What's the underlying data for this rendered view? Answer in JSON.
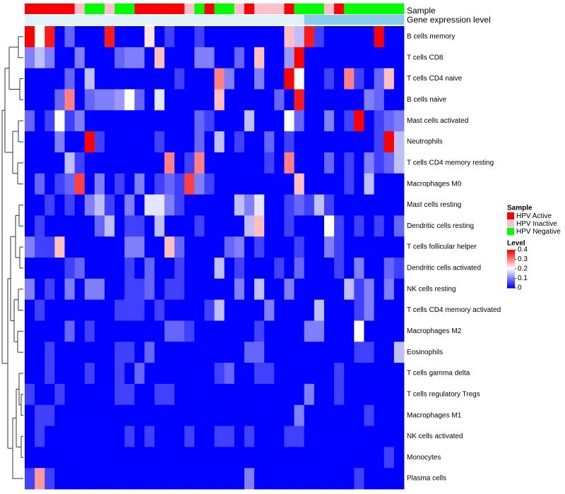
{
  "chart_data": {
    "type": "heatmap",
    "title": "",
    "annotation_tracks": [
      {
        "name": "Sample",
        "values": [
          "HPV Active",
          "HPV Active",
          "HPV Active",
          "HPV Active",
          "HPV Active",
          "HPV Inactive",
          "HPV Negative",
          "HPV Negative",
          "HPV Inactive",
          "HPV Negative",
          "HPV Negative",
          "HPV Active",
          "HPV Active",
          "HPV Active",
          "HPV Active",
          "HPV Active",
          "HPV Inactive",
          "HPV Negative",
          "HPV Active",
          "HPV Negative",
          "HPV Negative",
          "HPV Inactive",
          "HPV Active",
          "HPV Inactive",
          "HPV Inactive",
          "HPV Inactive",
          "HPV Active",
          "HPV Negative",
          "HPV Negative",
          "HPV Negative",
          "HPV Inactive",
          "HPV Active",
          "HPV Negative",
          "HPV Negative",
          "HPV Negative",
          "HPV Negative",
          "HPV Negative",
          "HPV Negative"
        ]
      },
      {
        "name": "Gene expression level",
        "values": [
          "low",
          "low",
          "low",
          "low",
          "low",
          "low",
          "low",
          "low",
          "low",
          "low",
          "low",
          "low",
          "low",
          "low",
          "low",
          "low",
          "low",
          "low",
          "low",
          "low",
          "low",
          "low",
          "low",
          "low",
          "low",
          "low",
          "low",
          "low",
          "high",
          "high",
          "high",
          "high",
          "high",
          "high",
          "high",
          "high",
          "high",
          "high"
        ]
      }
    ],
    "rows": [
      "B cells memory",
      "T cells CD8",
      "T cells CD4 naive",
      "B cells naive",
      "Mast cells activated",
      "Neutrophils",
      "T cells CD4 memory resting",
      "Macrophages M0",
      "Mast cells resting",
      "Dendritic cells resting",
      "T cells follicular helper",
      "Dendritic cells activated",
      "NK cells resting",
      "T cells CD4 memory activated",
      "Macrophages M2",
      "Eosinophils",
      "T cells gamma delta",
      "T cells regulatory  Tregs",
      "Macrophages M1",
      "NK cells activated",
      "Monocytes",
      "Plasma cells"
    ],
    "values": [
      [
        0.4,
        0.2,
        0.38,
        0.0,
        0.08,
        0.0,
        0.0,
        0.0,
        0.38,
        0.0,
        0.0,
        0.0,
        0.22,
        0.0,
        0.05,
        0.0,
        0.0,
        0.05,
        0.0,
        0.0,
        0.0,
        0.0,
        0.0,
        0.0,
        0.0,
        0.0,
        0.25,
        0.15,
        0.38,
        0.05,
        0.0,
        0.0,
        0.0,
        0.0,
        0.0,
        0.4,
        0.0,
        0.0
      ],
      [
        0.1,
        0.15,
        0.1,
        0.0,
        0.0,
        0.1,
        0.0,
        0.0,
        0.0,
        0.08,
        0.1,
        0.1,
        0.0,
        0.25,
        0.0,
        0.0,
        0.0,
        0.1,
        0.1,
        0.0,
        0.0,
        0.08,
        0.0,
        0.25,
        0.0,
        0.0,
        0.12,
        0.4,
        0.0,
        0.0,
        0.0,
        0.0,
        0.0,
        0.0,
        0.0,
        0.0,
        0.0,
        0.0
      ],
      [
        0.0,
        0.0,
        0.0,
        0.0,
        0.08,
        0.0,
        0.15,
        0.0,
        0.0,
        0.0,
        0.0,
        0.0,
        0.0,
        0.0,
        0.0,
        0.05,
        0.0,
        0.0,
        0.0,
        0.3,
        0.1,
        0.0,
        0.0,
        0.1,
        0.0,
        0.0,
        0.4,
        0.2,
        0.0,
        0.0,
        0.05,
        0.0,
        0.3,
        0.05,
        0.0,
        0.08,
        0.25,
        0.0
      ],
      [
        0.0,
        0.0,
        0.0,
        0.08,
        0.3,
        0.0,
        0.08,
        0.1,
        0.1,
        0.12,
        0.2,
        0.08,
        0.0,
        0.18,
        0.0,
        0.0,
        0.0,
        0.0,
        0.0,
        0.25,
        0.0,
        0.0,
        0.0,
        0.0,
        0.0,
        0.08,
        0.0,
        0.38,
        0.0,
        0.0,
        0.0,
        0.0,
        0.0,
        0.0,
        0.1,
        0.08,
        0.0,
        0.0
      ],
      [
        0.08,
        0.0,
        0.05,
        0.2,
        0.05,
        0.1,
        0.0,
        0.0,
        0.0,
        0.0,
        0.0,
        0.0,
        0.0,
        0.0,
        0.0,
        0.0,
        0.0,
        0.08,
        0.05,
        0.0,
        0.0,
        0.0,
        0.15,
        0.0,
        0.0,
        0.0,
        0.2,
        0.08,
        0.0,
        0.0,
        0.1,
        0.0,
        0.05,
        0.4,
        0.0,
        0.05,
        0.08,
        0.1
      ],
      [
        0.0,
        0.0,
        0.0,
        0.1,
        0.0,
        0.0,
        0.4,
        0.05,
        0.0,
        0.0,
        0.0,
        0.0,
        0.0,
        0.05,
        0.0,
        0.0,
        0.0,
        0.08,
        0.0,
        0.15,
        0.0,
        0.05,
        0.0,
        0.0,
        0.08,
        0.0,
        0.05,
        0.0,
        0.0,
        0.0,
        0.0,
        0.0,
        0.0,
        0.0,
        0.0,
        0.05,
        0.4,
        0.15
      ],
      [
        0.0,
        0.0,
        0.0,
        0.0,
        0.15,
        0.05,
        0.0,
        0.0,
        0.0,
        0.0,
        0.0,
        0.0,
        0.0,
        0.0,
        0.3,
        0.0,
        0.05,
        0.3,
        0.0,
        0.0,
        0.0,
        0.0,
        0.0,
        0.0,
        0.05,
        0.0,
        0.3,
        0.0,
        0.0,
        0.0,
        0.08,
        0.0,
        0.05,
        0.0,
        0.1,
        0.05,
        0.08,
        0.15
      ],
      [
        0.0,
        0.08,
        0.0,
        0.05,
        0.08,
        0.35,
        0.0,
        0.1,
        0.0,
        0.05,
        0.0,
        0.1,
        0.0,
        0.05,
        0.08,
        0.05,
        0.35,
        0.1,
        0.05,
        0.0,
        0.0,
        0.0,
        0.0,
        0.0,
        0.0,
        0.0,
        0.0,
        0.25,
        0.0,
        0.0,
        0.0,
        0.0,
        0.05,
        0.0,
        0.15,
        0.0,
        0.0,
        0.0
      ],
      [
        0.0,
        0.0,
        0.05,
        0.0,
        0.05,
        0.0,
        0.1,
        0.15,
        0.05,
        0.0,
        0.1,
        0.0,
        0.18,
        0.18,
        0.1,
        0.05,
        0.0,
        0.0,
        0.0,
        0.0,
        0.0,
        0.15,
        0.1,
        0.18,
        0.0,
        0.0,
        0.05,
        0.08,
        0.05,
        0.15,
        0.05,
        0.0,
        0.0,
        0.0,
        0.0,
        0.0,
        0.0,
        0.0
      ],
      [
        0.0,
        0.05,
        0.0,
        0.0,
        0.0,
        0.0,
        0.0,
        0.08,
        0.15,
        0.0,
        0.05,
        0.05,
        0.0,
        0.15,
        0.0,
        0.0,
        0.0,
        0.05,
        0.0,
        0.0,
        0.0,
        0.0,
        0.15,
        0.25,
        0.0,
        0.0,
        0.05,
        0.0,
        0.0,
        0.0,
        0.2,
        0.05,
        0.0,
        0.05,
        0.0,
        0.05,
        0.0,
        0.08
      ],
      [
        0.1,
        0.05,
        0.05,
        0.25,
        0.0,
        0.0,
        0.0,
        0.0,
        0.0,
        0.0,
        0.1,
        0.1,
        0.0,
        0.0,
        0.25,
        0.08,
        0.0,
        0.0,
        0.0,
        0.0,
        0.08,
        0.1,
        0.0,
        0.05,
        0.0,
        0.0,
        0.0,
        0.05,
        0.0,
        0.0,
        0.1,
        0.05,
        0.0,
        0.0,
        0.0,
        0.0,
        0.0,
        0.0
      ],
      [
        0.0,
        0.0,
        0.0,
        0.0,
        0.05,
        0.08,
        0.0,
        0.0,
        0.0,
        0.0,
        0.05,
        0.0,
        0.08,
        0.0,
        0.0,
        0.05,
        0.0,
        0.0,
        0.0,
        0.15,
        0.0,
        0.05,
        0.0,
        0.0,
        0.0,
        0.05,
        0.0,
        0.08,
        0.0,
        0.0,
        0.0,
        0.05,
        0.0,
        0.1,
        0.0,
        0.0,
        0.08,
        0.05
      ],
      [
        0.1,
        0.0,
        0.05,
        0.0,
        0.1,
        0.0,
        0.1,
        0.1,
        0.0,
        0.0,
        0.05,
        0.05,
        0.08,
        0.0,
        0.05,
        0.05,
        0.0,
        0.0,
        0.0,
        0.0,
        0.0,
        0.1,
        0.0,
        0.15,
        0.0,
        0.0,
        0.1,
        0.0,
        0.0,
        0.0,
        0.0,
        0.0,
        0.15,
        0.05,
        0.1,
        0.0,
        0.1,
        0.0
      ],
      [
        0.0,
        0.05,
        0.0,
        0.0,
        0.0,
        0.0,
        0.0,
        0.0,
        0.0,
        0.05,
        0.05,
        0.05,
        0.0,
        0.05,
        0.0,
        0.0,
        0.0,
        0.0,
        0.05,
        0.15,
        0.0,
        0.0,
        0.0,
        0.0,
        0.1,
        0.0,
        0.0,
        0.0,
        0.0,
        0.15,
        0.0,
        0.0,
        0.0,
        0.05,
        0.1,
        0.0,
        0.0,
        0.0
      ],
      [
        0.0,
        0.0,
        0.0,
        0.0,
        0.08,
        0.0,
        0.05,
        0.0,
        0.0,
        0.0,
        0.0,
        0.0,
        0.0,
        0.0,
        0.08,
        0.08,
        0.05,
        0.0,
        0.0,
        0.0,
        0.0,
        0.0,
        0.0,
        0.05,
        0.0,
        0.0,
        0.0,
        0.0,
        0.1,
        0.1,
        0.0,
        0.0,
        0.0,
        0.2,
        0.0,
        0.0,
        0.0,
        0.0
      ],
      [
        0.0,
        0.0,
        0.05,
        0.0,
        0.0,
        0.0,
        0.0,
        0.0,
        0.0,
        0.05,
        0.05,
        0.0,
        0.08,
        0.0,
        0.0,
        0.0,
        0.0,
        0.0,
        0.0,
        0.0,
        0.0,
        0.0,
        0.08,
        0.08,
        0.0,
        0.0,
        0.0,
        0.0,
        0.0,
        0.0,
        0.0,
        0.0,
        0.0,
        0.05,
        0.05,
        0.0,
        0.0,
        0.15
      ],
      [
        0.0,
        0.0,
        0.05,
        0.0,
        0.0,
        0.0,
        0.05,
        0.0,
        0.0,
        0.05,
        0.0,
        0.08,
        0.0,
        0.0,
        0.0,
        0.0,
        0.0,
        0.0,
        0.0,
        0.05,
        0.08,
        0.0,
        0.0,
        0.05,
        0.05,
        0.0,
        0.0,
        0.0,
        0.0,
        0.0,
        0.0,
        0.05,
        0.0,
        0.0,
        0.0,
        0.0,
        0.0,
        0.0
      ],
      [
        0.05,
        0.0,
        0.0,
        0.05,
        0.0,
        0.0,
        0.0,
        0.0,
        0.0,
        0.05,
        0.05,
        0.0,
        0.0,
        0.05,
        0.05,
        0.0,
        0.0,
        0.0,
        0.0,
        0.0,
        0.0,
        0.0,
        0.0,
        0.0,
        0.0,
        0.0,
        0.0,
        0.0,
        0.1,
        0.0,
        0.0,
        0.05,
        0.0,
        0.0,
        0.0,
        0.0,
        0.0,
        0.0
      ],
      [
        0.0,
        0.05,
        0.05,
        0.0,
        0.0,
        0.0,
        0.0,
        0.0,
        0.0,
        0.0,
        0.0,
        0.0,
        0.0,
        0.0,
        0.0,
        0.0,
        0.0,
        0.0,
        0.0,
        0.0,
        0.0,
        0.0,
        0.0,
        0.0,
        0.0,
        0.0,
        0.0,
        0.1,
        0.0,
        0.0,
        0.0,
        0.0,
        0.0,
        0.0,
        0.05,
        0.0,
        0.0,
        0.0
      ],
      [
        0.0,
        0.05,
        0.0,
        0.0,
        0.0,
        0.0,
        0.0,
        0.0,
        0.0,
        0.0,
        0.05,
        0.0,
        0.05,
        0.0,
        0.0,
        0.0,
        0.05,
        0.0,
        0.0,
        0.05,
        0.05,
        0.0,
        0.05,
        0.0,
        0.0,
        0.0,
        0.05,
        0.05,
        0.0,
        0.0,
        0.0,
        0.0,
        0.0,
        0.0,
        0.0,
        0.0,
        0.0,
        0.0
      ],
      [
        0.0,
        0.0,
        0.0,
        0.0,
        0.0,
        0.0,
        0.0,
        0.0,
        0.0,
        0.0,
        0.0,
        0.0,
        0.0,
        0.0,
        0.0,
        0.0,
        0.0,
        0.0,
        0.0,
        0.0,
        0.0,
        0.0,
        0.0,
        0.0,
        0.0,
        0.0,
        0.0,
        0.0,
        0.0,
        0.0,
        0.0,
        0.0,
        0.0,
        0.0,
        0.0,
        0.0,
        0.05,
        0.0
      ],
      [
        0.05,
        0.28,
        0.05,
        0.0,
        0.0,
        0.0,
        0.0,
        0.0,
        0.0,
        0.0,
        0.0,
        0.0,
        0.0,
        0.0,
        0.0,
        0.0,
        0.0,
        0.0,
        0.0,
        0.0,
        0.0,
        0.0,
        0.1,
        0.0,
        0.0,
        0.0,
        0.0,
        0.0,
        0.0,
        0.0,
        0.0,
        0.0,
        0.0,
        0.05,
        0.0,
        0.0,
        0.0,
        0.0
      ]
    ],
    "color_scale": {
      "min": 0,
      "max": 0.4,
      "colors": [
        "#0000ff",
        "#ffffff",
        "#ff0000"
      ]
    },
    "legend": {
      "sample_title": "Sample",
      "sample_entries": [
        {
          "label": "HPV Active",
          "color": "#ff0000"
        },
        {
          "label": "HPV Inactive",
          "color": "#ffc0cb"
        },
        {
          "label": "HPV Negative",
          "color": "#00ff00"
        }
      ],
      "level_title": "Level",
      "level_ticks": [
        {
          "value": 0.4,
          "label": "0.4"
        },
        {
          "value": 0.3,
          "label": "0.3"
        },
        {
          "value": 0.2,
          "label": "0.2"
        },
        {
          "value": 0.1,
          "label": "0.1"
        },
        {
          "value": 0,
          "label": "0"
        }
      ]
    },
    "expression_colors": {
      "low": "#e0f3fb",
      "high": "#87ceeb"
    }
  }
}
